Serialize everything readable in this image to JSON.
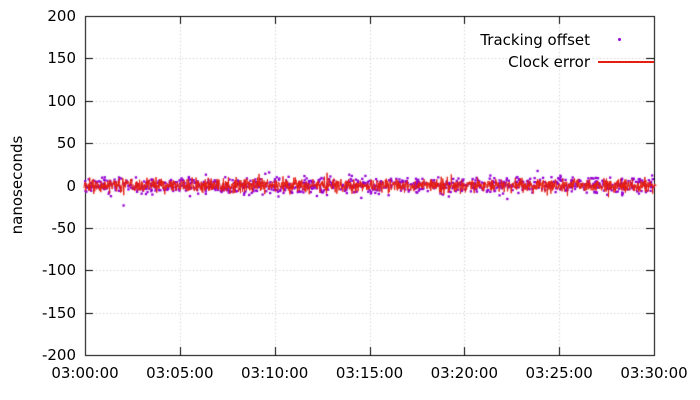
{
  "chart_data": {
    "type": "line+scatter",
    "title": "",
    "xlabel": "",
    "ylabel": "nanoseconds",
    "x_tick_labels": [
      "03:00:00",
      "03:05:00",
      "03:10:00",
      "03:15:00",
      "03:20:00",
      "03:25:00",
      "03:30:00"
    ],
    "y_tick_labels": [
      "200",
      "150",
      "100",
      "50",
      "0",
      "-50",
      "-100",
      "-150",
      "-200"
    ],
    "ylim": [
      -200,
      200
    ],
    "x_range": [
      "03:00:00",
      "03:30:00"
    ],
    "grid": true,
    "grid_style": "dotted",
    "grid_color": "#c8c8c8",
    "axis_color": "#000000",
    "background_color": "#ffffff",
    "legend": {
      "position": "top-right"
    },
    "series": [
      {
        "name": "Tracking offset",
        "style": "points",
        "marker": "dot",
        "color": "#9400d3",
        "mean_ns": 0,
        "stddev_ns": 5,
        "observed_range_ns": [
          -30,
          30
        ],
        "point_count": 950
      },
      {
        "name": "Clock error",
        "style": "line",
        "color": "#e51e10",
        "mean_ns": 0,
        "stddev_ns": 4,
        "observed_range_ns": [
          -22,
          22
        ],
        "point_count": 1700
      }
    ]
  }
}
